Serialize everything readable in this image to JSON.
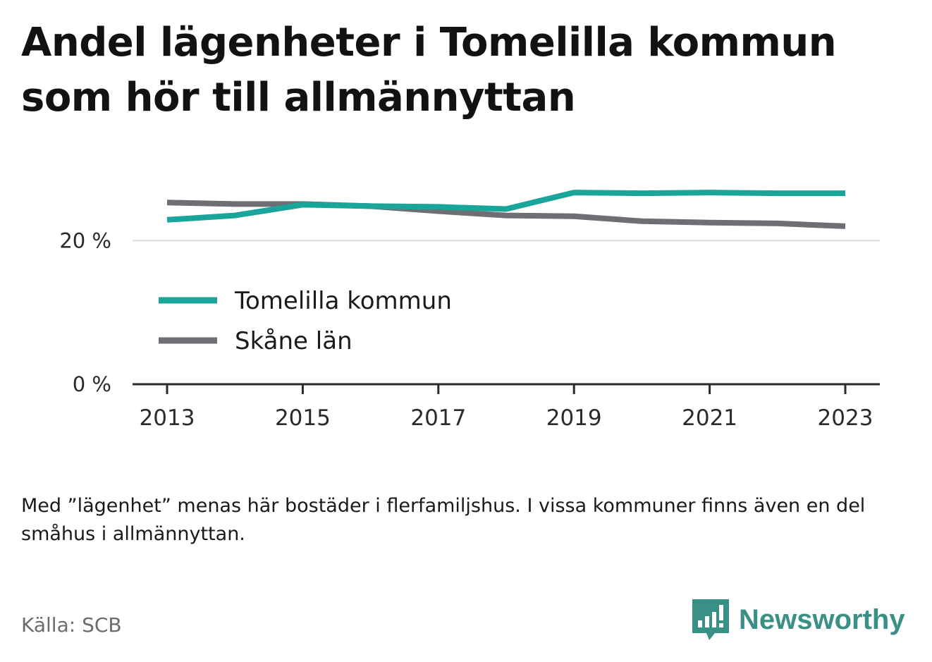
{
  "title": "Andel lägenheter i Tomelilla kommun som hör till allmännyttan",
  "note": "Med ”lägenhet” menas här bostäder i flerfamiljshus. I vissa kommuner finns även en del småhus i allmännyttan.",
  "source": "Källa: SCB",
  "brand": {
    "name": "Newsworthy",
    "icon": "newsworthy-logo-icon",
    "color": "#3a8f87"
  },
  "chart_data": {
    "type": "line",
    "x": [
      2013,
      2014,
      2015,
      2016,
      2017,
      2018,
      2019,
      2020,
      2021,
      2022,
      2023
    ],
    "x_tick_labels": [
      "2013",
      "2015",
      "2017",
      "2019",
      "2021",
      "2023"
    ],
    "x_tick_values": [
      2013,
      2015,
      2017,
      2019,
      2021,
      2023
    ],
    "y_tick_labels": [
      "0 %",
      "20 %"
    ],
    "y_tick_values": [
      0,
      20
    ],
    "ylim": [
      0,
      27
    ],
    "grid": true,
    "legend_position": "lower-left",
    "series": [
      {
        "name": "Tomelilla kommun",
        "color": "#1aa59a",
        "values": [
          22.9,
          23.5,
          25.0,
          24.8,
          24.7,
          24.4,
          26.7,
          26.6,
          26.7,
          26.6,
          26.6
        ]
      },
      {
        "name": "Skåne län",
        "color": "#6e6e74",
        "values": [
          25.3,
          25.1,
          25.1,
          24.8,
          24.1,
          23.5,
          23.4,
          22.7,
          22.5,
          22.4,
          22.0
        ]
      }
    ]
  }
}
